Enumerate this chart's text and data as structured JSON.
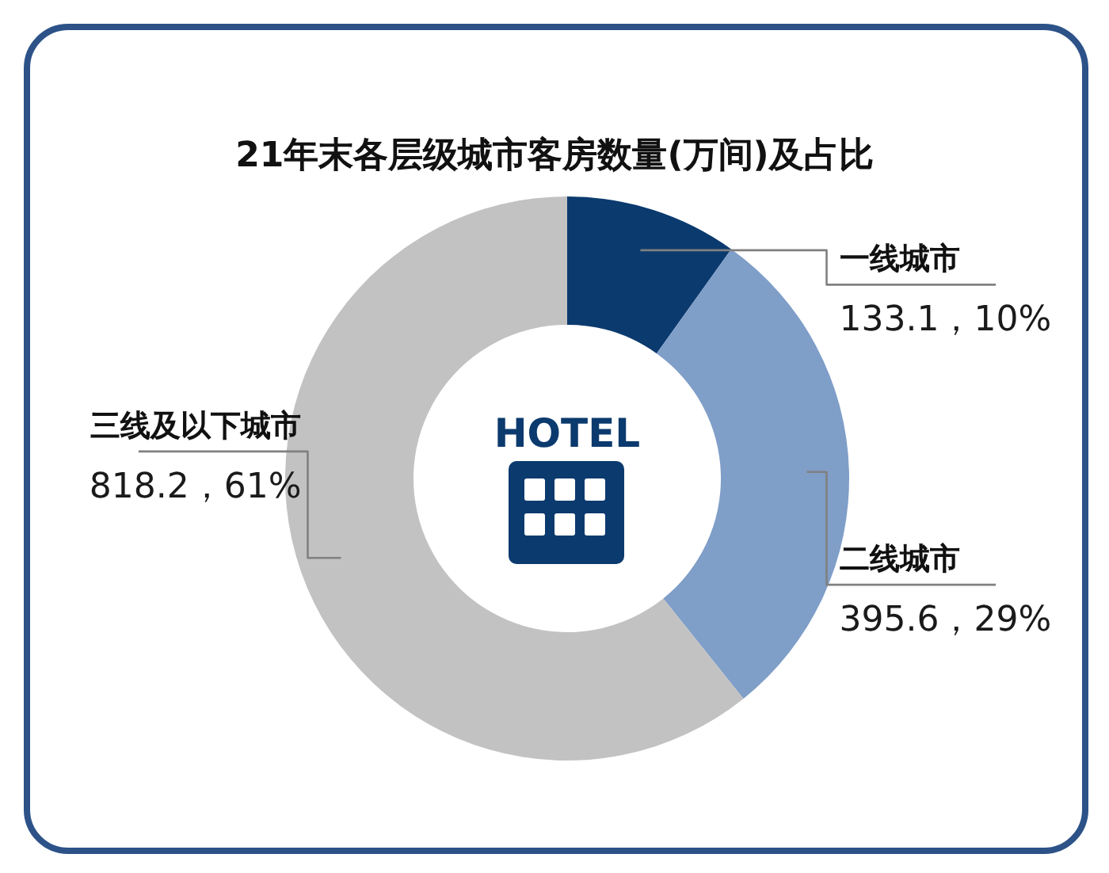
{
  "chart_data": {
    "type": "donut",
    "title": "21年末各层级城市客房数量(万间)及占比",
    "categories": [
      "一线城市",
      "二线城市",
      "三线及以下城市"
    ],
    "values": [
      133.1,
      395.6,
      818.2
    ],
    "colors": [
      "#0b3a6e",
      "#7f9ec8",
      "#c2c2c2"
    ],
    "value_labels": [
      "133.1，10%",
      "395.6，29%",
      "818.2，61%"
    ],
    "annotations": [
      "HOTEL"
    ]
  }
}
